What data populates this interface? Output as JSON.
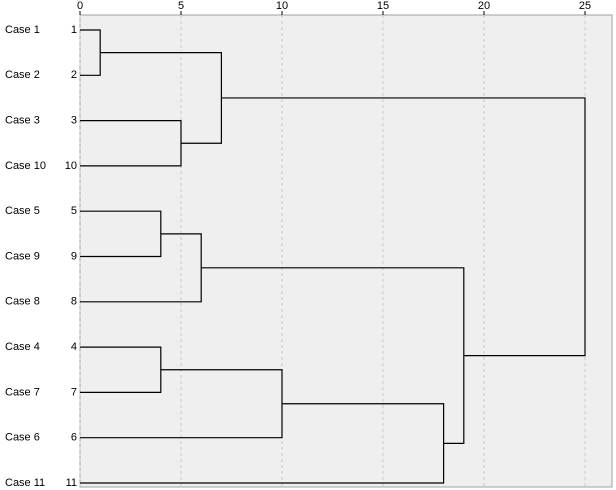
{
  "chart_data": {
    "type": "dendrogram",
    "xlim": [
      0,
      25
    ],
    "xticks": [
      0,
      5,
      10,
      15,
      20,
      25
    ],
    "grid": true,
    "leaves": [
      {
        "label": "Case 1",
        "id": "1"
      },
      {
        "label": "Case 2",
        "id": "2"
      },
      {
        "label": "Case 3",
        "id": "3"
      },
      {
        "label": "Case 10",
        "id": "10"
      },
      {
        "label": "Case 5",
        "id": "5"
      },
      {
        "label": "Case 9",
        "id": "9"
      },
      {
        "label": "Case 8",
        "id": "8"
      },
      {
        "label": "Case 4",
        "id": "4"
      },
      {
        "label": "Case 7",
        "id": "7"
      },
      {
        "label": "Case 6",
        "id": "6"
      },
      {
        "label": "Case 11",
        "id": "11"
      }
    ],
    "merges": [
      {
        "left": 0,
        "right": 1,
        "height": 1
      },
      {
        "left": 2,
        "right": 3,
        "height": 5
      },
      {
        "left": 11,
        "right": 12,
        "height": 7
      },
      {
        "left": 4,
        "right": 5,
        "height": 4
      },
      {
        "left": 14,
        "right": 6,
        "height": 6
      },
      {
        "left": 7,
        "right": 8,
        "height": 4
      },
      {
        "left": 16,
        "right": 9,
        "height": 10
      },
      {
        "left": 17,
        "right": 10,
        "height": 18
      },
      {
        "left": 15,
        "right": 18,
        "height": 19
      },
      {
        "left": 13,
        "right": 19,
        "height": 25
      }
    ]
  }
}
